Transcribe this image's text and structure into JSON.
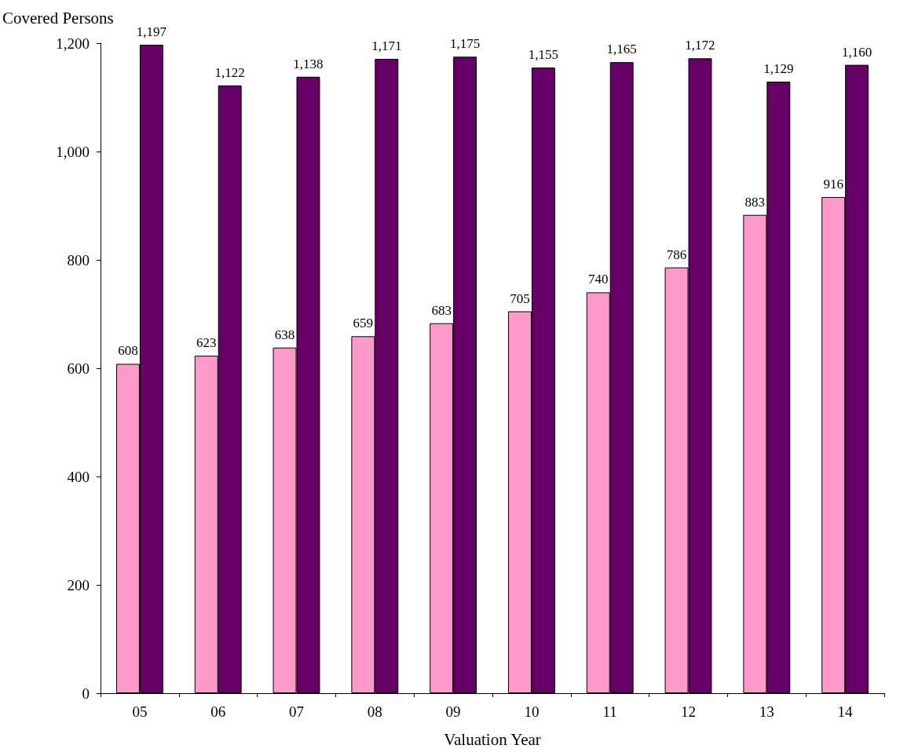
{
  "chart_data": {
    "type": "bar",
    "xlabel": "Valuation Year",
    "ylabel": "Covered Persons",
    "categories": [
      "05",
      "06",
      "07",
      "08",
      "09",
      "10",
      "11",
      "12",
      "13",
      "14"
    ],
    "series": [
      {
        "color": "#ff99cc",
        "values": [
          608,
          623,
          638,
          659,
          683,
          705,
          740,
          786,
          883,
          916
        ]
      },
      {
        "color": "#660066",
        "values": [
          1197,
          1122,
          1138,
          1171,
          1175,
          1155,
          1165,
          1172,
          1129,
          1160
        ],
        "value_labels": [
          "1,197",
          "1,122",
          "1,138",
          "1,171",
          "1,175",
          "1,155",
          "1,165",
          "1,172",
          "1,129",
          "1,160"
        ]
      }
    ],
    "ylim": [
      0,
      1200
    ],
    "yticks": [
      0,
      200,
      400,
      600,
      800,
      {
        "value": 1000,
        "label": "1,000"
      },
      {
        "value": 1200,
        "label": "1,200"
      }
    ],
    "grid": false,
    "data_labels": true
  }
}
